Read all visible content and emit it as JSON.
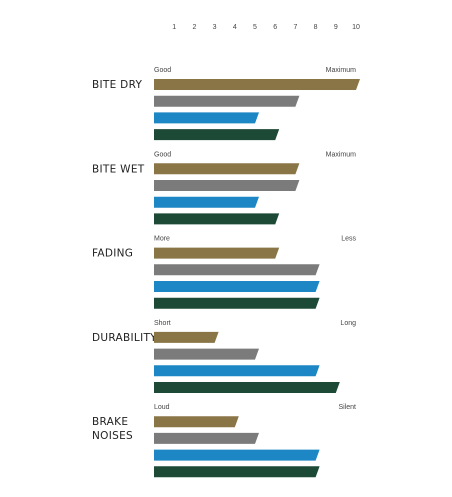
{
  "chart_data": {
    "type": "bar",
    "orientation": "horizontal",
    "x_ticks": [
      "1",
      "2",
      "3",
      "4",
      "5",
      "6",
      "7",
      "8",
      "9",
      "10"
    ],
    "xlim": [
      0,
      10
    ],
    "colors": [
      "#8a7547",
      "#7b7b7b",
      "#1d86c4",
      "#1d4a36"
    ],
    "groups": [
      {
        "label": [
          "BITE DRY"
        ],
        "low": "Good",
        "high": "Maximum",
        "values": [
          10,
          7,
          5,
          6
        ]
      },
      {
        "label": [
          "BITE WET"
        ],
        "low": "Good",
        "high": "Maximum",
        "values": [
          7,
          7,
          5,
          6
        ]
      },
      {
        "label": [
          "FADING"
        ],
        "low": "More",
        "high": "Less",
        "values": [
          6,
          8,
          8,
          8
        ]
      },
      {
        "label": [
          "DURABILITY"
        ],
        "low": "Short",
        "high": "Long",
        "values": [
          3,
          5,
          8,
          9
        ]
      },
      {
        "label": [
          "BRAKE",
          "NOISES"
        ],
        "low": "Loud",
        "high": "Silent",
        "values": [
          4,
          5,
          8,
          8
        ]
      }
    ]
  }
}
